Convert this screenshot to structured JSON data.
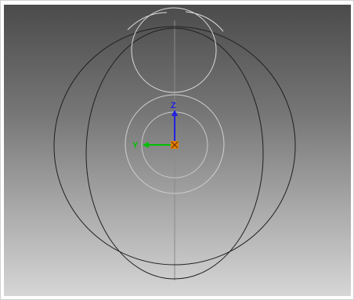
{
  "viewport": {
    "background_top": "#4b4b4b",
    "background_bottom": "#d6d6d6",
    "wire_color": "#1f1f1f",
    "light_wire_color": "#dcdcdc",
    "grid_color": "#8a8a8a"
  },
  "gizmo": {
    "z_label": "Z",
    "y_label": "Y",
    "z_color": "#2020e0",
    "y_color": "#00c000",
    "origin_color": "#e08000",
    "icons": [
      "z-axis-arrow-icon",
      "y-axis-arrow-icon",
      "origin-marker-icon"
    ]
  }
}
